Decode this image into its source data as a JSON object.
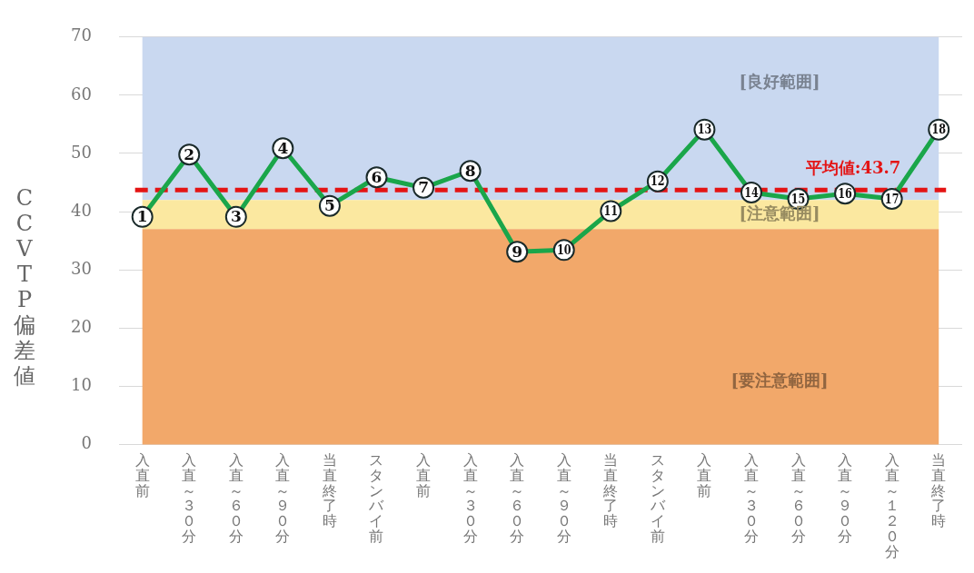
{
  "chart_data": {
    "type": "line",
    "ylabel": "CCVTP偏差値",
    "categories": [
      "入直前",
      "入直～３０分",
      "入直～６０分",
      "入直～９０分",
      "当直終了時",
      "スタンバイ前",
      "入直前",
      "入直～３０分",
      "入直～６０分",
      "入直～９０分",
      "当直終了時",
      "スタンバイ前",
      "入直前",
      "入直～３０分",
      "入直～６０分",
      "入直～９０分",
      "入直～１２０分",
      "当直終了時"
    ],
    "series": [
      {
        "color": "#1aa64a",
        "values": [
          39.1,
          49.8,
          39.1,
          50.9,
          41.0,
          45.9,
          44.1,
          47.0,
          33.1,
          33.4,
          40.1,
          45.2,
          54.1,
          43.3,
          42.2,
          43.1,
          42.2,
          54.1
        ]
      }
    ],
    "ylim": [
      0,
      70
    ],
    "yticks": [
      0,
      10,
      20,
      30,
      40,
      50,
      60,
      70
    ],
    "grid": "y",
    "marker": "circle",
    "line_style": "solid",
    "legend": false,
    "bands": [
      {
        "axis": "y",
        "from": 42,
        "to": 70,
        "label": "[良好範囲]",
        "color": "#c9d8f0"
      },
      {
        "axis": "y",
        "from": 37,
        "to": 42,
        "label": "[注意範囲]",
        "color": "#fbe8a0"
      },
      {
        "axis": "y",
        "from": 0,
        "to": 37,
        "label": "[要注意範囲]",
        "color": "#f2a86a"
      }
    ],
    "ref_lines": [
      {
        "axis": "y",
        "value": 43.7,
        "label": "平均値:43.7",
        "color": "#e41414",
        "line_style": "dashed"
      }
    ],
    "annotations": [
      "1",
      "2",
      "3",
      "4",
      "5",
      "6",
      "7",
      "8",
      "9",
      "10",
      "11",
      "12",
      "13",
      "14",
      "15",
      "16",
      "17",
      "18"
    ]
  }
}
